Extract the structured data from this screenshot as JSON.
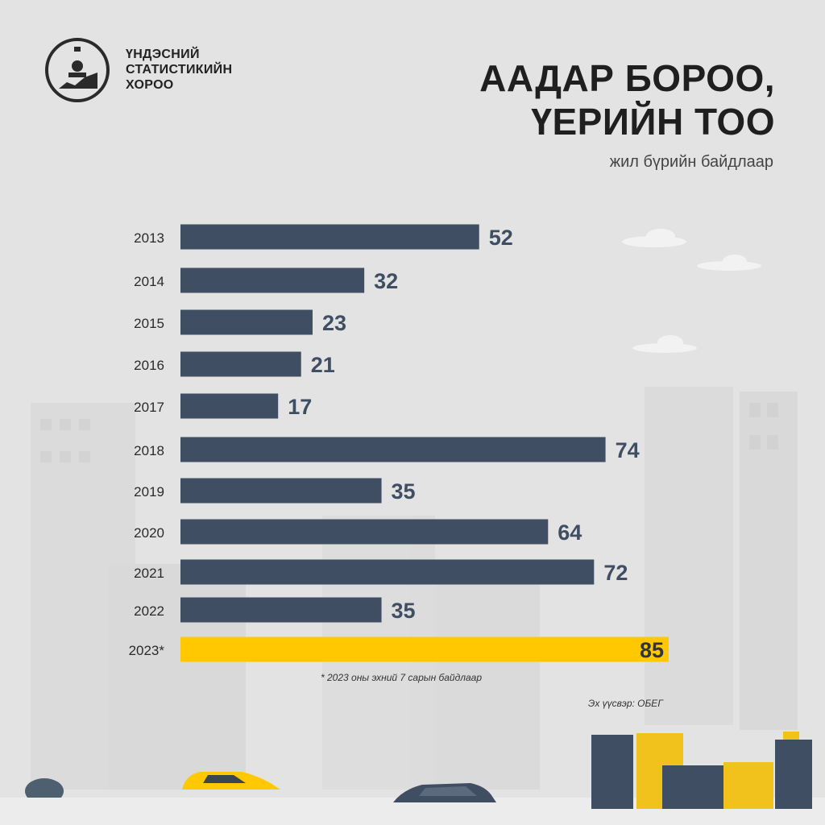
{
  "org": {
    "name_lines": [
      "ҮНДЭСНИЙ",
      "СТАТИСТИКИЙН",
      "ХОРОО"
    ]
  },
  "header": {
    "title_lines": [
      "ААДАР БОРОО,",
      "ҮЕРИЙН ТОО"
    ],
    "subtitle": "жил бүрийн байдлаар"
  },
  "colors": {
    "bar": "#3f4e62",
    "highlight": "#ffc800",
    "value_text": "#3f4e62",
    "highlight_value_text": "#2e3540",
    "background": "#e3e3e3"
  },
  "chart_data": {
    "type": "bar",
    "orientation": "horizontal",
    "categories": [
      "2013",
      "2014",
      "2015",
      "2016",
      "2017",
      "2018",
      "2019",
      "2020",
      "2021",
      "2022",
      "2023*"
    ],
    "values": [
      52,
      32,
      23,
      21,
      17,
      74,
      35,
      64,
      72,
      35,
      85
    ],
    "highlight": [
      "2023*"
    ],
    "title": "ААДАР БОРОО, ҮЕРИЙН ТОО",
    "subtitle": "жил бүрийн байдлаар",
    "xlabel": "",
    "ylabel": "",
    "xlim": [
      0,
      85
    ],
    "grid": false,
    "legend": "none"
  },
  "footnote": "* 2023 оны эхний 7 сарын байдлаар",
  "source": "Эх үүсвэр: ОБЕГ"
}
